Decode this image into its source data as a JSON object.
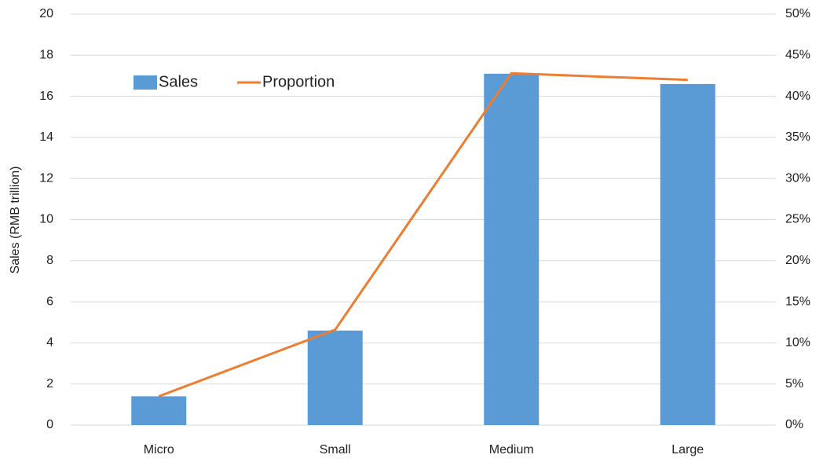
{
  "chart_data": {
    "type": "bar",
    "categories": [
      "Micro",
      "Small",
      "Medium",
      "Large"
    ],
    "y_label": "Sales (RMB trillion)",
    "series": [
      {
        "name": "Sales",
        "type": "bar",
        "color": "#5b9bd5",
        "values": [
          1.4,
          4.6,
          17.1,
          16.6
        ]
      },
      {
        "name": "Proportion",
        "type": "line",
        "axis": "y2",
        "color": "#ed7d31",
        "values": [
          3.5,
          11.6,
          42.8,
          42.0
        ]
      }
    ],
    "ylim": [
      0,
      20
    ],
    "yticks": [
      0,
      2,
      4,
      6,
      8,
      10,
      12,
      14,
      16,
      18,
      20
    ],
    "y2lim": [
      0,
      50
    ],
    "y2ticks": [
      {
        "value": 0,
        "label": "0%"
      },
      {
        "value": 5,
        "label": "5%"
      },
      {
        "value": 10,
        "label": "10%"
      },
      {
        "value": 15,
        "label": "15%"
      },
      {
        "value": 20,
        "label": "20%"
      },
      {
        "value": 25,
        "label": "25%"
      },
      {
        "value": 30,
        "label": "30%"
      },
      {
        "value": 35,
        "label": "35%"
      },
      {
        "value": 40,
        "label": "40%"
      },
      {
        "value": 45,
        "label": "45%"
      },
      {
        "value": 50,
        "label": "50%"
      }
    ],
    "grid": true,
    "legend": "upper-left"
  }
}
